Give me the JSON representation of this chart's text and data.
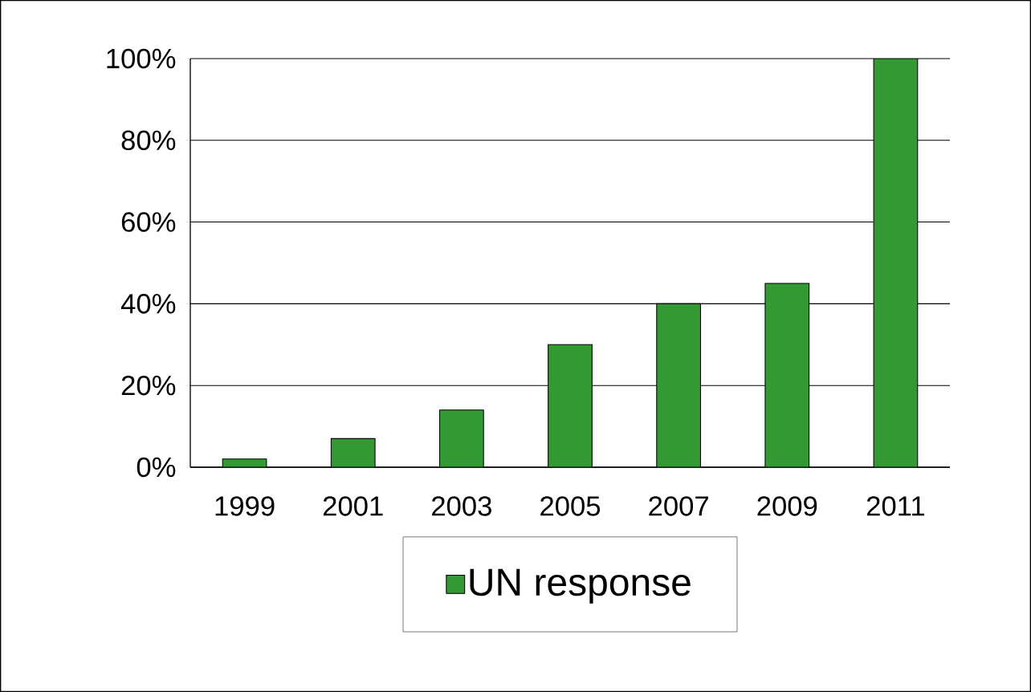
{
  "chart_data": {
    "type": "bar",
    "categories": [
      "1999",
      "2001",
      "2003",
      "2005",
      "2007",
      "2009",
      "2011"
    ],
    "series": [
      {
        "name": "UN response",
        "color": "#339933",
        "values": [
          2,
          7,
          14,
          30,
          40,
          45,
          100
        ]
      }
    ],
    "ylim": [
      0,
      100
    ],
    "yticks": [
      {
        "value": 0,
        "label": "0%"
      },
      {
        "value": 20,
        "label": "20%"
      },
      {
        "value": 40,
        "label": "40%"
      },
      {
        "value": 60,
        "label": "60%"
      },
      {
        "value": 80,
        "label": "80%"
      },
      {
        "value": 100,
        "label": "100%"
      }
    ],
    "grid": "y",
    "legend": "bottom"
  }
}
